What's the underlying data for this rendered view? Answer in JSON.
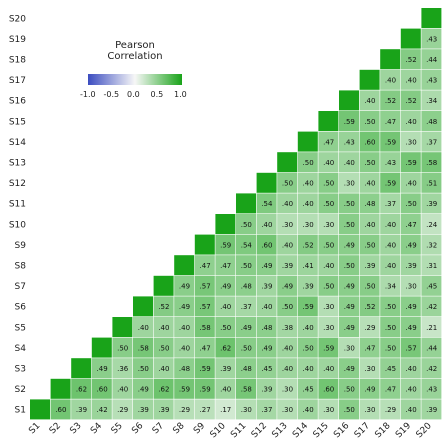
{
  "chart_data": {
    "type": "heatmap",
    "title": "",
    "xlabel": "",
    "ylabel": "",
    "rows": [
      "S20",
      "S19",
      "S18",
      "S17",
      "S16",
      "S15",
      "S14",
      "S13",
      "S12",
      "S11",
      "S10",
      "S9",
      "S8",
      "S7",
      "S6",
      "S5",
      "S4",
      "S3",
      "S2",
      "S1"
    ],
    "columns": [
      "S1",
      "S2",
      "S3",
      "S4",
      "S5",
      "S6",
      "S7",
      "S8",
      "S9",
      "S10",
      "S11",
      "S12",
      "S13",
      "S14",
      "S15",
      "S16",
      "S17",
      "S18",
      "S19",
      "S20"
    ],
    "values": [
      [
        null,
        null,
        null,
        null,
        null,
        null,
        null,
        null,
        null,
        null,
        null,
        null,
        null,
        null,
        null,
        null,
        null,
        null,
        null,
        1
      ],
      [
        null,
        null,
        null,
        null,
        null,
        null,
        null,
        null,
        null,
        null,
        null,
        null,
        null,
        null,
        null,
        null,
        null,
        null,
        1,
        0.43
      ],
      [
        null,
        null,
        null,
        null,
        null,
        null,
        null,
        null,
        null,
        null,
        null,
        null,
        null,
        null,
        null,
        null,
        null,
        1,
        0.52,
        0.44
      ],
      [
        null,
        null,
        null,
        null,
        null,
        null,
        null,
        null,
        null,
        null,
        null,
        null,
        null,
        null,
        null,
        null,
        1,
        0.4,
        0.4,
        0.43
      ],
      [
        null,
        null,
        null,
        null,
        null,
        null,
        null,
        null,
        null,
        null,
        null,
        null,
        null,
        null,
        null,
        1,
        0.4,
        0.52,
        0.52,
        0.34
      ],
      [
        null,
        null,
        null,
        null,
        null,
        null,
        null,
        null,
        null,
        null,
        null,
        null,
        null,
        null,
        1,
        0.59,
        0.5,
        0.47,
        0.4,
        0.48
      ],
      [
        null,
        null,
        null,
        null,
        null,
        null,
        null,
        null,
        null,
        null,
        null,
        null,
        null,
        1,
        0.47,
        0.43,
        0.6,
        0.59,
        0.3,
        0.37
      ],
      [
        null,
        null,
        null,
        null,
        null,
        null,
        null,
        null,
        null,
        null,
        null,
        null,
        1,
        0.5,
        0.4,
        0.4,
        0.5,
        0.43,
        0.59,
        0.58
      ],
      [
        null,
        null,
        null,
        null,
        null,
        null,
        null,
        null,
        null,
        null,
        null,
        1,
        0.5,
        0.4,
        0.5,
        0.3,
        0.4,
        0.59,
        0.4,
        0.51
      ],
      [
        null,
        null,
        null,
        null,
        null,
        null,
        null,
        null,
        null,
        null,
        1,
        0.54,
        0.4,
        0.4,
        0.5,
        0.5,
        0.48,
        0.37,
        0.5,
        0.39
      ],
      [
        null,
        null,
        null,
        null,
        null,
        null,
        null,
        null,
        null,
        1,
        0.5,
        0.4,
        0.3,
        0.3,
        0.3,
        0.5,
        0.4,
        0.4,
        0.47,
        0.24
      ],
      [
        null,
        null,
        null,
        null,
        null,
        null,
        null,
        null,
        1,
        0.59,
        0.54,
        0.6,
        0.4,
        0.52,
        0.5,
        0.49,
        0.5,
        0.4,
        0.49,
        0.32
      ],
      [
        null,
        null,
        null,
        null,
        null,
        null,
        null,
        1,
        0.47,
        0.47,
        0.5,
        0.49,
        0.39,
        0.41,
        0.4,
        0.5,
        0.39,
        0.4,
        0.39,
        0.31
      ],
      [
        null,
        null,
        null,
        null,
        null,
        null,
        1,
        0.49,
        0.57,
        0.49,
        0.48,
        0.39,
        0.49,
        0.39,
        0.5,
        0.49,
        0.5,
        0.34,
        0.3,
        0.45
      ],
      [
        null,
        null,
        null,
        null,
        null,
        1,
        0.52,
        0.49,
        0.57,
        0.4,
        0.37,
        0.4,
        0.5,
        0.59,
        0.3,
        0.49,
        0.52,
        0.5,
        0.49,
        0.42
      ],
      [
        null,
        null,
        null,
        null,
        1,
        0.4,
        0.4,
        0.4,
        0.58,
        0.5,
        0.49,
        0.48,
        0.38,
        0.4,
        0.3,
        0.49,
        0.29,
        0.5,
        0.49,
        0.21
      ],
      [
        null,
        null,
        null,
        1,
        0.5,
        0.58,
        0.5,
        0.4,
        0.47,
        0.62,
        0.5,
        0.49,
        0.4,
        0.5,
        0.59,
        0.3,
        0.47,
        0.5,
        0.57,
        0.44
      ],
      [
        null,
        null,
        1,
        0.49,
        0.36,
        0.5,
        0.4,
        0.48,
        0.59,
        0.39,
        0.48,
        0.45,
        0.4,
        0.4,
        0.4,
        0.49,
        0.3,
        0.45,
        0.4,
        0.42
      ],
      [
        null,
        1,
        0.62,
        0.6,
        0.4,
        0.49,
        0.62,
        0.59,
        0.59,
        0.4,
        0.58,
        0.39,
        0.3,
        0.45,
        0.6,
        0.5,
        0.49,
        0.47,
        0.4,
        0.43
      ],
      [
        1,
        0.6,
        0.39,
        0.42,
        0.29,
        0.39,
        0.39,
        0.29,
        0.27,
        0.17,
        0.3,
        0.37,
        0.3,
        0.4,
        0.3,
        0.5,
        0.3,
        0.29,
        0.4,
        0.39
      ]
    ],
    "colorbar": {
      "title": "Pearson\nCorrelation",
      "ticks": [
        "-1.0",
        "-0.5",
        "0.0",
        "0.5",
        "1.0"
      ],
      "range": [
        -1,
        1
      ]
    },
    "colors": {
      "low": "#3b4cc0",
      "mid": "#f7f7f7",
      "high": "#19a319"
    },
    "grid": false,
    "legend_position": "top-left",
    "layout": "lower-triangle"
  }
}
